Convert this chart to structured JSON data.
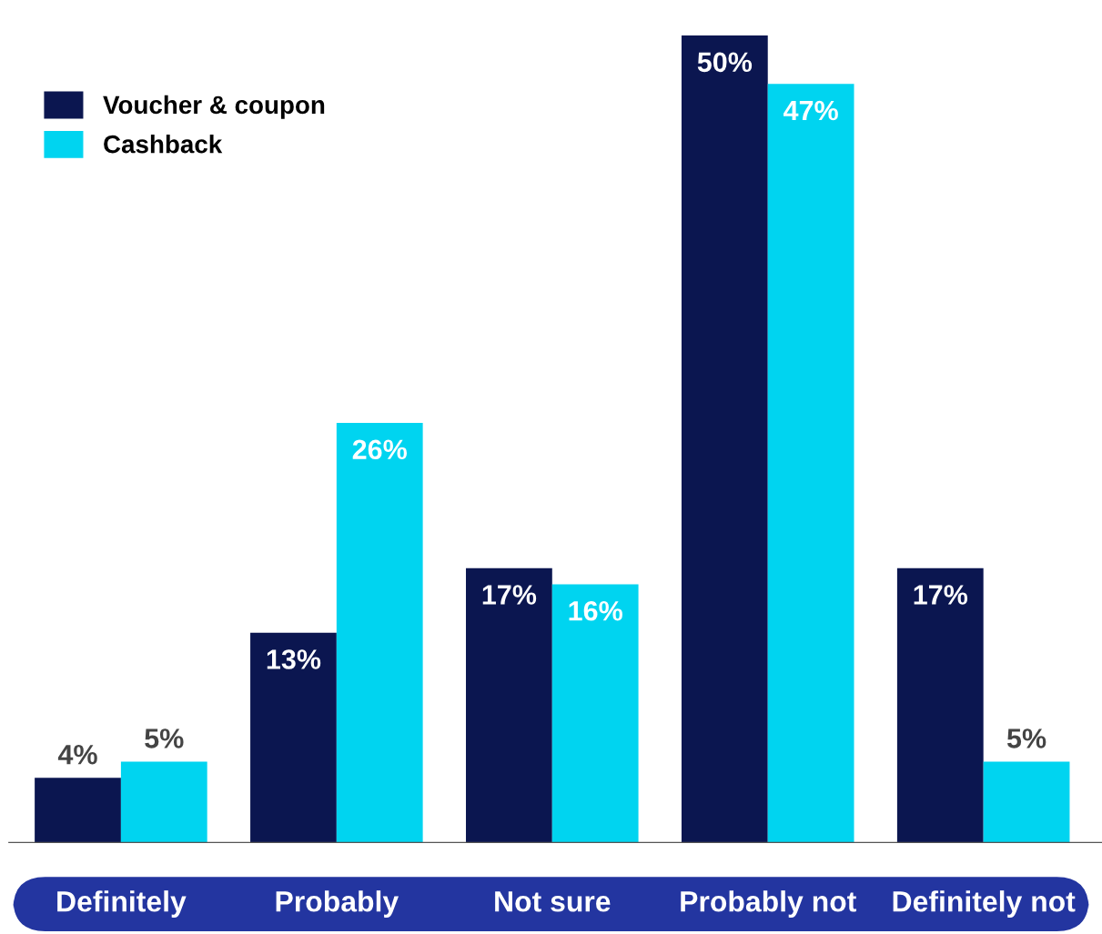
{
  "chart_data": {
    "type": "bar",
    "categories": [
      "Definitely",
      "Probably",
      "Not sure",
      "Probably not",
      "Definitely not"
    ],
    "series": [
      {
        "name": "Voucher & coupon",
        "color": "#0b1650",
        "values": [
          4,
          13,
          17,
          50,
          17
        ],
        "value_labels": [
          "4%",
          "13%",
          "17%",
          "50%",
          "17%"
        ]
      },
      {
        "name": "Cashback",
        "color": "#00d4f0",
        "values": [
          5,
          26,
          16,
          47,
          5
        ],
        "value_labels": [
          "5%",
          "26%",
          "16%",
          "47%",
          "5%"
        ]
      }
    ],
    "legend": "top left",
    "grid": false
  }
}
